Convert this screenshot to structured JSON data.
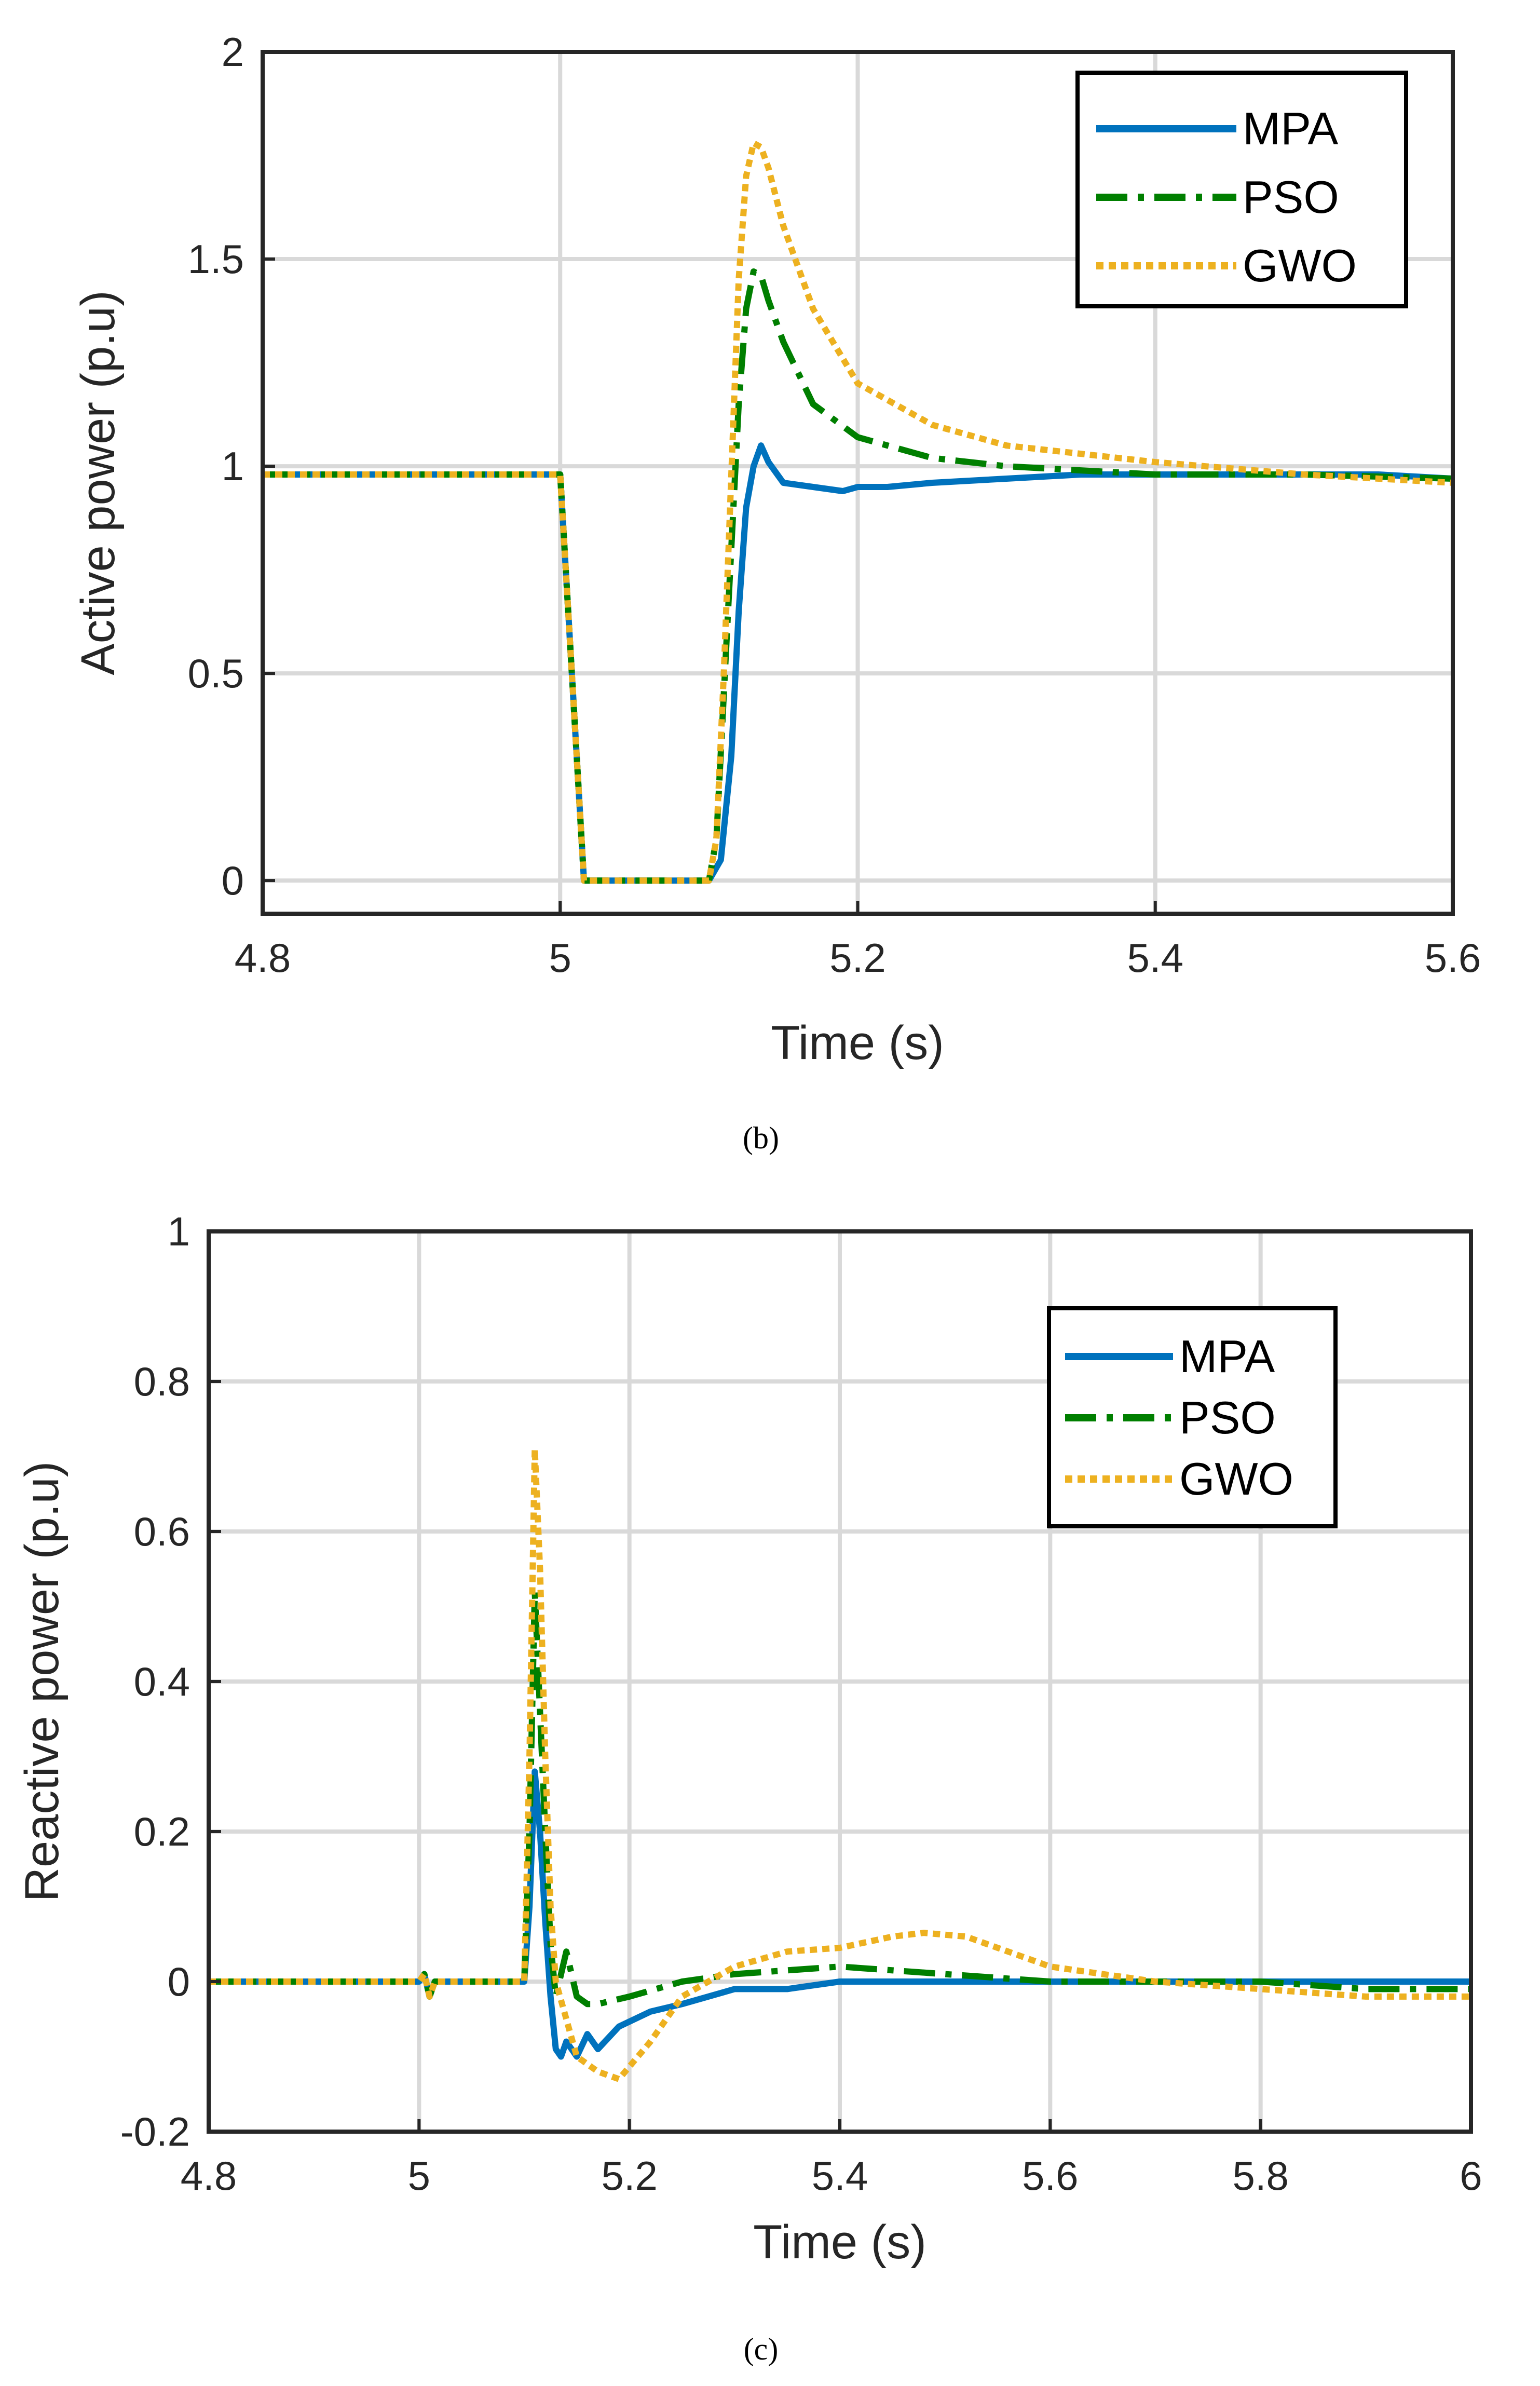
{
  "chart_data": [
    {
      "type": "line",
      "title": "",
      "xlabel": "Time (s)",
      "ylabel": "Active power (p.u)",
      "xlim": [
        4.8,
        5.6
      ],
      "ylim": [
        -0.08,
        2
      ],
      "xticks": [
        4.8,
        5,
        5.2,
        5.4,
        5.6
      ],
      "yticks": [
        0,
        0.5,
        1,
        1.5,
        2
      ],
      "xtick_labels": [
        "4.8",
        "5",
        "5.2",
        "5.4",
        "5.6"
      ],
      "ytick_labels": [
        "0",
        "0.5",
        "1",
        "1.5",
        "2"
      ],
      "grid": true,
      "legend_position": "top-right",
      "caption": "(b)",
      "series": [
        {
          "name": "MPA",
          "color": "#0072BD",
          "style": "solid",
          "x": [
            4.8,
            5.0,
            5.016,
            5.1,
            5.108,
            5.115,
            5.12,
            5.125,
            5.13,
            5.135,
            5.14,
            5.15,
            5.17,
            5.19,
            5.2,
            5.22,
            5.25,
            5.3,
            5.35,
            5.4,
            5.45,
            5.5,
            5.55,
            5.6
          ],
          "y": [
            0.98,
            0.98,
            0.0,
            0.0,
            0.05,
            0.3,
            0.65,
            0.9,
            1.0,
            1.05,
            1.01,
            0.96,
            0.95,
            0.94,
            0.95,
            0.95,
            0.96,
            0.97,
            0.98,
            0.98,
            0.98,
            0.98,
            0.98,
            0.97
          ]
        },
        {
          "name": "PSO",
          "color": "#007F00",
          "style": "dashdot",
          "x": [
            4.8,
            5.0,
            5.016,
            5.1,
            5.105,
            5.11,
            5.12,
            5.125,
            5.13,
            5.135,
            5.14,
            5.15,
            5.17,
            5.2,
            5.25,
            5.3,
            5.35,
            5.4,
            5.5,
            5.6
          ],
          "y": [
            0.98,
            0.98,
            0.0,
            0.0,
            0.1,
            0.45,
            1.15,
            1.38,
            1.47,
            1.46,
            1.4,
            1.3,
            1.15,
            1.07,
            1.02,
            1.0,
            0.99,
            0.98,
            0.98,
            0.97
          ]
        },
        {
          "name": "GWO",
          "color": "#EDB120",
          "style": "dotted",
          "x": [
            4.8,
            5.0,
            5.016,
            5.1,
            5.105,
            5.11,
            5.12,
            5.125,
            5.13,
            5.135,
            5.14,
            5.15,
            5.17,
            5.2,
            5.25,
            5.3,
            5.35,
            5.4,
            5.5,
            5.6
          ],
          "y": [
            0.98,
            0.98,
            0.0,
            0.0,
            0.1,
            0.5,
            1.45,
            1.7,
            1.78,
            1.77,
            1.72,
            1.58,
            1.38,
            1.2,
            1.1,
            1.05,
            1.03,
            1.01,
            0.98,
            0.96
          ]
        }
      ]
    },
    {
      "type": "line",
      "title": "",
      "xlabel": "Time (s)",
      "ylabel": "Reactive power (p.u)",
      "xlim": [
        4.8,
        6
      ],
      "ylim": [
        -0.2,
        1
      ],
      "xticks": [
        4.8,
        5,
        5.2,
        5.4,
        5.6,
        5.8,
        6
      ],
      "yticks": [
        -0.2,
        0,
        0.2,
        0.4,
        0.6,
        0.8,
        1
      ],
      "xtick_labels": [
        "4.8",
        "5",
        "5.2",
        "5.4",
        "5.6",
        "5.8",
        "6"
      ],
      "ytick_labels": [
        "-0.2",
        "0",
        "0.2",
        "0.4",
        "0.6",
        "0.8",
        "1"
      ],
      "grid": true,
      "legend_position": "top-right",
      "caption": "(c)",
      "series": [
        {
          "name": "MPA",
          "color": "#0072BD",
          "style": "solid",
          "x": [
            4.8,
            5.0,
            5.005,
            5.01,
            5.015,
            5.1,
            5.105,
            5.11,
            5.115,
            5.12,
            5.125,
            5.13,
            5.135,
            5.14,
            5.15,
            5.16,
            5.17,
            5.19,
            5.22,
            5.25,
            5.3,
            5.35,
            5.4,
            5.5,
            5.6,
            5.7,
            5.8,
            5.9,
            6.0
          ],
          "y": [
            0.0,
            0.0,
            0.01,
            -0.02,
            0.0,
            0.0,
            0.1,
            0.28,
            0.2,
            0.08,
            -0.02,
            -0.09,
            -0.1,
            -0.08,
            -0.1,
            -0.07,
            -0.09,
            -0.06,
            -0.04,
            -0.03,
            -0.01,
            -0.01,
            0.0,
            0.0,
            0.0,
            0.0,
            0.0,
            0.0,
            0.0
          ]
        },
        {
          "name": "PSO",
          "color": "#007F00",
          "style": "dashdot",
          "x": [
            4.8,
            5.0,
            5.005,
            5.01,
            5.015,
            5.1,
            5.105,
            5.11,
            5.115,
            5.12,
            5.125,
            5.13,
            5.14,
            5.15,
            5.16,
            5.17,
            5.2,
            5.25,
            5.3,
            5.4,
            5.5,
            5.6,
            5.7,
            5.8,
            5.9,
            6.0
          ],
          "y": [
            0.0,
            0.0,
            0.01,
            -0.02,
            0.0,
            0.0,
            0.2,
            0.52,
            0.36,
            0.2,
            0.05,
            -0.02,
            0.04,
            -0.02,
            -0.03,
            -0.03,
            -0.02,
            0.0,
            0.01,
            0.02,
            0.01,
            0.0,
            0.0,
            0.0,
            -0.01,
            -0.01
          ]
        },
        {
          "name": "GWO",
          "color": "#EDB120",
          "style": "dotted",
          "x": [
            4.8,
            5.0,
            5.005,
            5.01,
            5.015,
            5.1,
            5.105,
            5.11,
            5.115,
            5.12,
            5.125,
            5.13,
            5.14,
            5.15,
            5.17,
            5.19,
            5.22,
            5.25,
            5.3,
            5.35,
            5.4,
            5.45,
            5.48,
            5.52,
            5.6,
            5.7,
            5.8,
            5.9,
            6.0
          ],
          "y": [
            0.0,
            0.0,
            0.01,
            -0.02,
            0.0,
            0.0,
            0.3,
            0.71,
            0.55,
            0.3,
            0.1,
            0.0,
            -0.05,
            -0.1,
            -0.12,
            -0.13,
            -0.08,
            -0.02,
            0.02,
            0.04,
            0.045,
            0.06,
            0.065,
            0.06,
            0.02,
            0.0,
            -0.01,
            -0.02,
            -0.02
          ]
        }
      ]
    }
  ]
}
